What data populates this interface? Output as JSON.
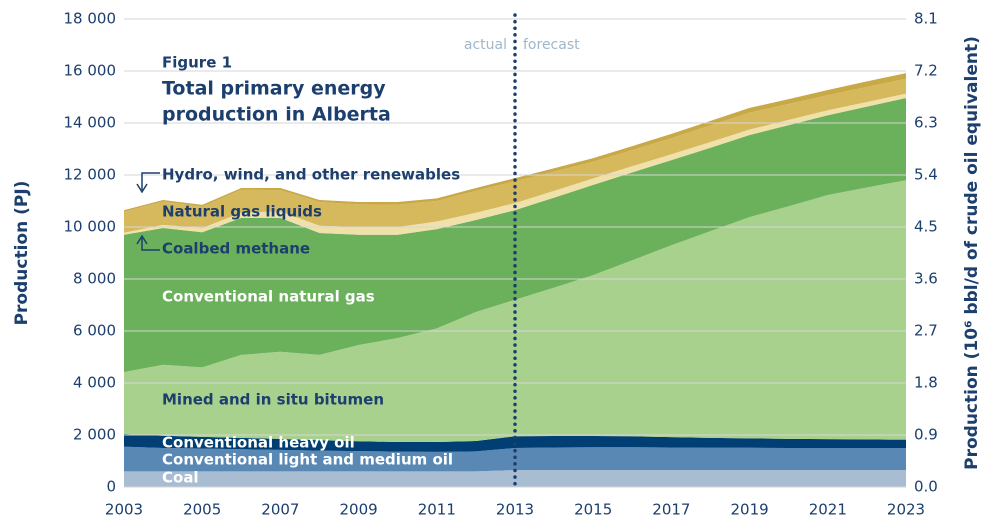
{
  "chart_data": {
    "type": "stacked_area",
    "figure_label": "Figure 1",
    "title": [
      "Total primary energy",
      "production in Alberta"
    ],
    "y_label": "Production (PJ)",
    "y2_label": "Production (10⁶ bbl/d of crude oil equivalent)",
    "annotations": {
      "actual": "actual",
      "forecast": "forecast"
    },
    "forecast_start": 2013,
    "x": [
      2003,
      2004,
      2005,
      2006,
      2007,
      2008,
      2009,
      2010,
      2011,
      2012,
      2013,
      2014,
      2015,
      2016,
      2017,
      2018,
      2019,
      2020,
      2021,
      2022,
      2023
    ],
    "xlim": [
      2003,
      2023
    ],
    "xticks": [
      2003,
      2005,
      2007,
      2009,
      2011,
      2013,
      2015,
      2017,
      2019,
      2021,
      2023
    ],
    "ylim": [
      0,
      18000
    ],
    "yticks": [
      0,
      {
        "value": 2000,
        "label": "2 000"
      },
      {
        "value": 4000,
        "label": "4 000"
      },
      {
        "value": 6000,
        "label": "6 000"
      },
      {
        "value": 8000,
        "label": "8 000"
      },
      {
        "value": 10000,
        "label": "10 000"
      },
      {
        "value": 12000,
        "label": "12 000"
      },
      {
        "value": 14000,
        "label": "14 000"
      },
      {
        "value": 16000,
        "label": "16 000"
      },
      {
        "value": 18000,
        "label": "18 000"
      }
    ],
    "y2lim": [
      0,
      8.1
    ],
    "y2ticks": [
      {
        "value": 0,
        "label": "0.0"
      },
      0.9,
      1.8,
      2.7,
      3.6,
      4.5,
      5.4,
      6.3,
      7.2,
      8.1
    ],
    "grid": true,
    "series": [
      {
        "name": "Coal",
        "color": "#a9bdd2",
        "values": [
          600,
          600,
          600,
          600,
          600,
          600,
          600,
          600,
          600,
          600,
          650,
          650,
          650,
          650,
          650,
          650,
          650,
          650,
          650,
          650,
          650
        ]
      },
      {
        "name": "Conventional light and medium oil",
        "color": "#5a88b5",
        "values": [
          950,
          900,
          880,
          850,
          830,
          800,
          780,
          760,
          750,
          770,
          850,
          870,
          880,
          880,
          870,
          860,
          860,
          850,
          850,
          850,
          850
        ]
      },
      {
        "name": "Conventional heavy oil",
        "color": "#003e73",
        "values": [
          490,
          470,
          450,
          440,
          420,
          400,
          380,
          370,
          380,
          400,
          450,
          440,
          430,
          420,
          400,
          380,
          360,
          350,
          340,
          330,
          320
        ]
      },
      {
        "name": "Mined and in situ bitumen",
        "color": "#a9d18e",
        "values": [
          2380,
          2730,
          2670,
          3190,
          3350,
          3280,
          3700,
          4000,
          4370,
          4960,
          5250,
          5710,
          6190,
          6770,
          7380,
          7950,
          8510,
          8950,
          9390,
          9690,
          9980
        ]
      },
      {
        "name": "Conventional natural gas",
        "color": "#6bb15b",
        "values": [
          5280,
          5260,
          5200,
          5270,
          5150,
          4690,
          4240,
          3970,
          3820,
          3540,
          3450,
          3460,
          3470,
          3380,
          3270,
          3210,
          3160,
          3120,
          3070,
          3110,
          3160
        ]
      },
      {
        "name": "Coalbed methane",
        "color": "#efe1a9",
        "values": [
          80,
          120,
          160,
          200,
          250,
          280,
          300,
          300,
          290,
          280,
          270,
          260,
          250,
          240,
          230,
          220,
          210,
          200,
          190,
          180,
          170
        ]
      },
      {
        "name": "Natural gas liquids",
        "color": "#d6b95d",
        "values": [
          810,
          900,
          820,
          880,
          820,
          910,
          870,
          860,
          790,
          840,
          840,
          740,
          640,
          620,
          620,
          640,
          650,
          610,
          580,
          580,
          570
        ]
      },
      {
        "name": "Hydro, wind, and other renewables",
        "color": "#c9a846",
        "values": [
          60,
          60,
          70,
          70,
          80,
          80,
          90,
          100,
          100,
          110,
          120,
          130,
          140,
          150,
          160,
          170,
          180,
          190,
          200,
          210,
          220
        ]
      }
    ]
  }
}
